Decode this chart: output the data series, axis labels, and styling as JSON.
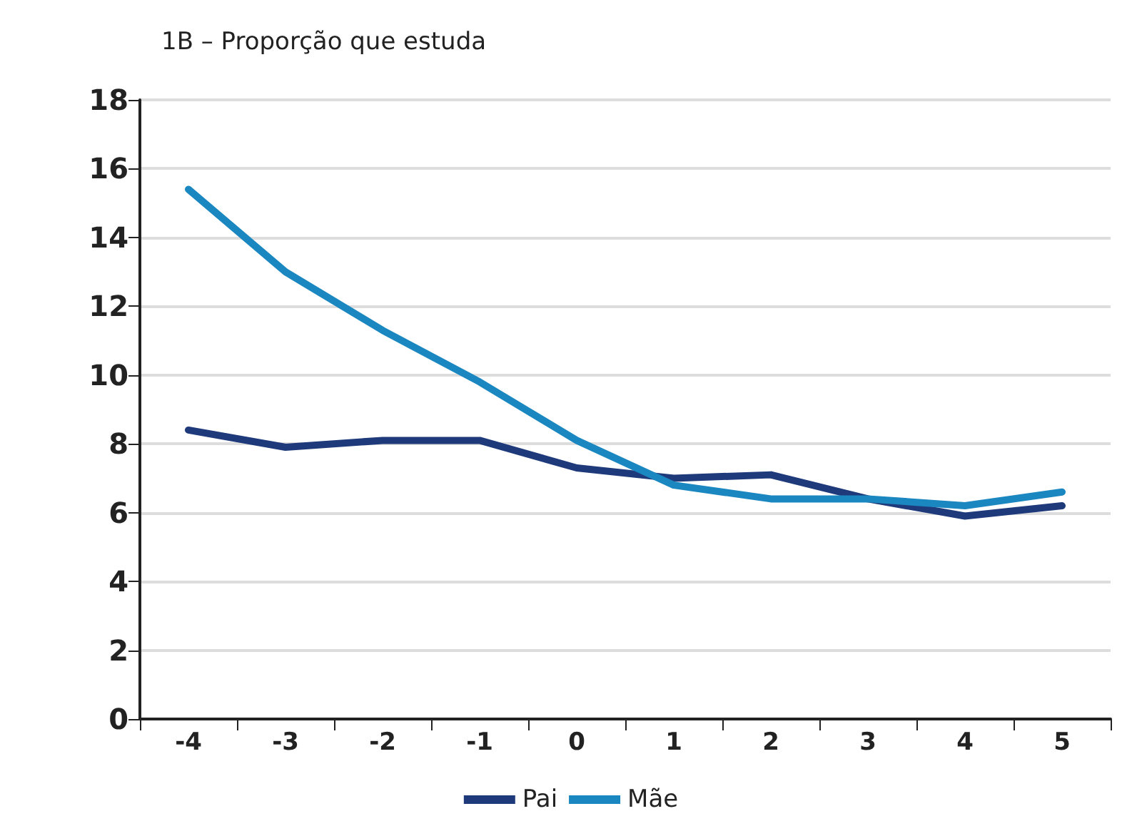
{
  "chart_data": {
    "type": "line",
    "title": "1B – Proporção que estuda",
    "categories": [
      "-4",
      "-3",
      "-2",
      "-1",
      "0",
      "1",
      "2",
      "3",
      "4",
      "5"
    ],
    "series": [
      {
        "name": "Pai",
        "color": "#1f3a7a",
        "values": [
          8.4,
          7.9,
          8.1,
          8.1,
          7.3,
          7.0,
          7.1,
          6.4,
          5.9,
          6.2
        ]
      },
      {
        "name": "Mãe",
        "color": "#1a87c0",
        "values": [
          15.4,
          13.0,
          11.3,
          9.8,
          8.1,
          6.8,
          6.4,
          6.4,
          6.2,
          6.6
        ]
      }
    ],
    "ylim": [
      0,
      18
    ],
    "yticks": [
      0,
      2,
      4,
      6,
      8,
      10,
      12,
      14,
      16,
      18
    ],
    "grid": "y",
    "legend": "bottom",
    "marker": "none",
    "line_style": "solid"
  }
}
